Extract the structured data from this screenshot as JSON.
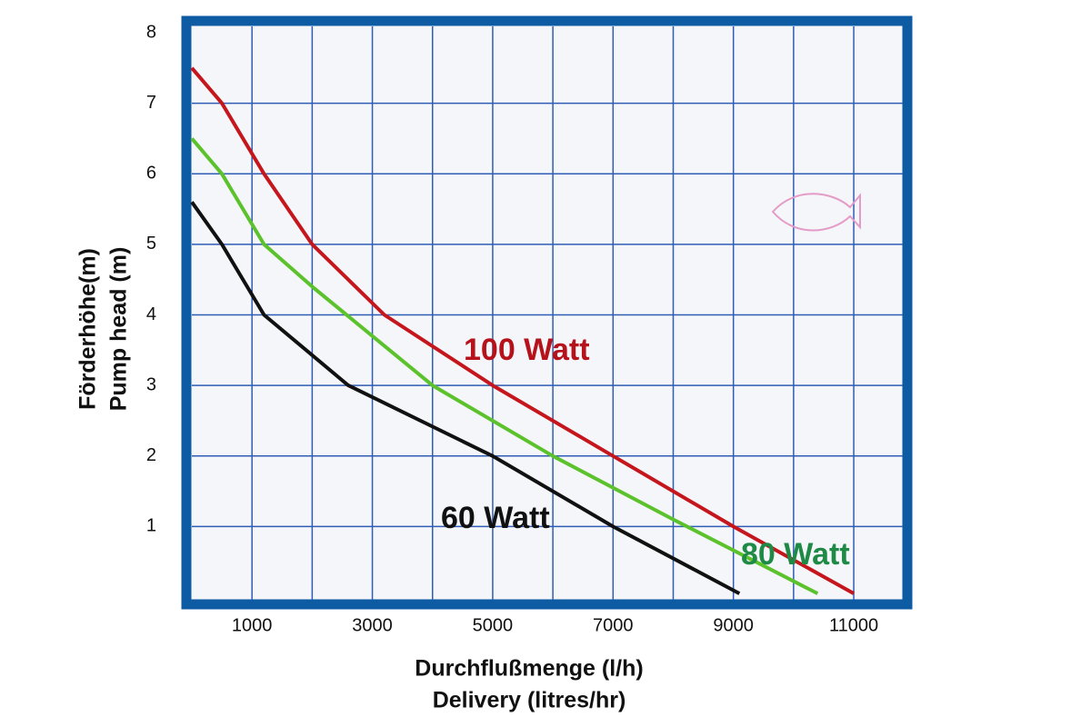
{
  "chart_data": {
    "type": "line",
    "y_label": [
      "Förderhöhe(m)",
      "Pump head (m)"
    ],
    "x_label": [
      "Durchflußmenge (l/h)",
      "Delivery (litres/hr)"
    ],
    "xlim": [
      0,
      11800
    ],
    "ylim": [
      0,
      8
    ],
    "xticks": [
      1000,
      3000,
      5000,
      7000,
      9000,
      11000
    ],
    "xgrid": [
      1000,
      2000,
      3000,
      4000,
      5000,
      6000,
      7000,
      8000,
      9000,
      10000,
      11000
    ],
    "yticks": [
      1,
      2,
      3,
      4,
      5,
      6,
      7,
      8
    ],
    "grid": true,
    "series": [
      {
        "name": "100 Watt",
        "color": "#c4161c",
        "label_color": "#b5121b",
        "x": [
          0,
          500,
          1200,
          2000,
          3200,
          5000,
          7000,
          9000,
          11000
        ],
        "values": [
          7.5,
          7.0,
          6.0,
          5.0,
          4.0,
          3.0,
          2.0,
          1.0,
          0.05
        ]
      },
      {
        "name": "80 Watt",
        "color": "#5cc22c",
        "label_color": "#1e8a46",
        "x": [
          0,
          500,
          1200,
          2000,
          4000,
          6000,
          8000,
          10400
        ],
        "values": [
          6.5,
          6.0,
          5.0,
          4.4,
          3.0,
          2.0,
          1.1,
          0.05
        ]
      },
      {
        "name": "60 Watt",
        "color": "#111111",
        "label_color": "#111111",
        "x": [
          0,
          500,
          1200,
          2600,
          5000,
          7000,
          9100
        ],
        "values": [
          5.6,
          5.0,
          4.0,
          3.0,
          2.0,
          1.0,
          0.05
        ]
      }
    ]
  }
}
